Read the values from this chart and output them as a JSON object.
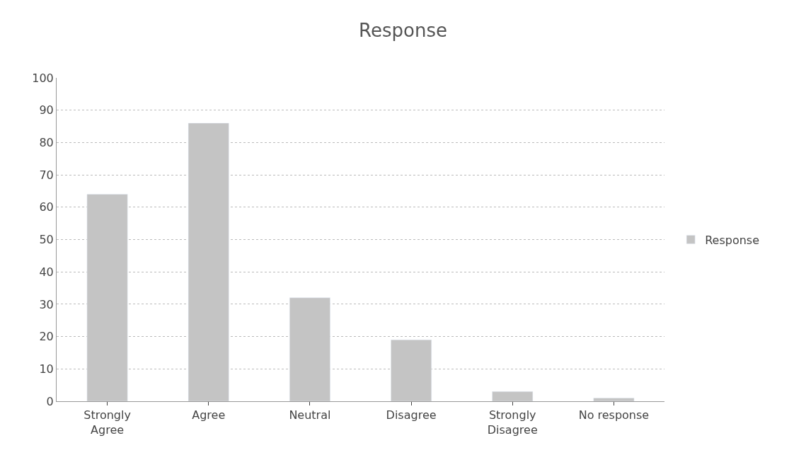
{
  "chart_data": {
    "type": "bar",
    "title": "Response",
    "categories": [
      "Strongly Agree",
      "Agree",
      "Neutral",
      "Disagree",
      "Strongly Disagree",
      "No response"
    ],
    "series": [
      {
        "name": "Response",
        "color": "#c4c4c4",
        "values": [
          64,
          86,
          32,
          19,
          3,
          1
        ]
      }
    ],
    "ylim": [
      0,
      100
    ],
    "yticks": [
      0,
      10,
      20,
      30,
      40,
      50,
      60,
      70,
      80,
      90,
      100
    ],
    "grid": "y",
    "legend": "right"
  }
}
